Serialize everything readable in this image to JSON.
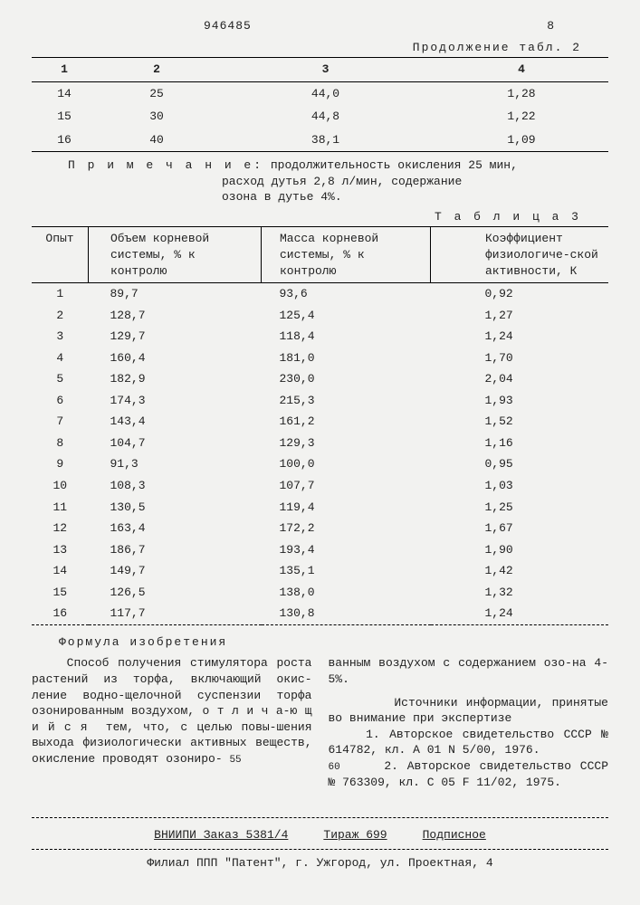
{
  "header": {
    "docnum": "946485",
    "page": "8"
  },
  "t2": {
    "caption": "Продолжение табл. 2",
    "headers": [
      "1",
      "2",
      "3",
      "4"
    ],
    "rows": [
      [
        "14",
        "25",
        "44,0",
        "1,28"
      ],
      [
        "15",
        "30",
        "44,8",
        "1,22"
      ],
      [
        "16",
        "40",
        "38,1",
        "1,09"
      ]
    ]
  },
  "note": {
    "label": "П р и м е ч а н и е:",
    "line1": "продолжительность окисления 25 мин,",
    "line2": "расход дутья 2,8 л/мин, содержание",
    "line3": "озона в дутье 4%."
  },
  "t3": {
    "caption": "Т а б л и ц а   3",
    "headers": [
      "Опыт",
      "Объем корневой системы, % к контролю",
      "Масса корневой системы, % к контролю",
      "Коэффициент физиологиче-ской активности, К"
    ],
    "rows": [
      [
        "1",
        "89,7",
        "93,6",
        "0,92"
      ],
      [
        "2",
        "128,7",
        "125,4",
        "1,27"
      ],
      [
        "3",
        "129,7",
        "118,4",
        "1,24"
      ],
      [
        "4",
        "160,4",
        "181,0",
        "1,70"
      ],
      [
        "5",
        "182,9",
        "230,0",
        "2,04"
      ],
      [
        "6",
        "174,3",
        "215,3",
        "1,93"
      ],
      [
        "7",
        "143,4",
        "161,2",
        "1,52"
      ],
      [
        "8",
        "104,7",
        "129,3",
        "1,16"
      ],
      [
        "9",
        "91,3",
        "100,0",
        "0,95"
      ],
      [
        "10",
        "108,3",
        "107,7",
        "1,03"
      ],
      [
        "11",
        "130,5",
        "119,4",
        "1,25"
      ],
      [
        "12",
        "163,4",
        "172,2",
        "1,67"
      ],
      [
        "13",
        "186,7",
        "193,4",
        "1,90"
      ],
      [
        "14",
        "149,7",
        "135,1",
        "1,42"
      ],
      [
        "15",
        "126,5",
        "138,0",
        "1,32"
      ],
      [
        "16",
        "117,7",
        "130,8",
        "1,24"
      ]
    ]
  },
  "formula": {
    "title": "Формула изобретения"
  },
  "leftcol": "    Способ получения стимулятора роста растений из торфа, включающий окис-ление водно-щелочной суспензии торфа озонированным воздухом, о т л и ч а-ю щ и й с я  тем, что, с целью повы-шения выхода физиологически активных веществ, окисление проводят озониро-",
  "rightcol_a": "ванным воздухом с содержанием озо-на 4-5%.",
  "rightcol_b": "        Источники информации, принятые во внимание при экспертизе",
  "rightcol_c": "    1. Авторское свидетельство СССР № 614782, кл. A 01 N 5/00, 1976.",
  "rightcol_d": "    2. Авторское свидетельство СССР № 763309, кл. C 05 F 11/02, 1975.",
  "ln55": "55",
  "ln60": "60",
  "footer": {
    "line1a": "ВНИИПИ   Заказ 5381/4",
    "line1b": "Тираж 699",
    "line1c": "Подписное",
    "line2": "Филиал ППП \"Патент\", г. Ужгород, ул. Проектная, 4"
  }
}
